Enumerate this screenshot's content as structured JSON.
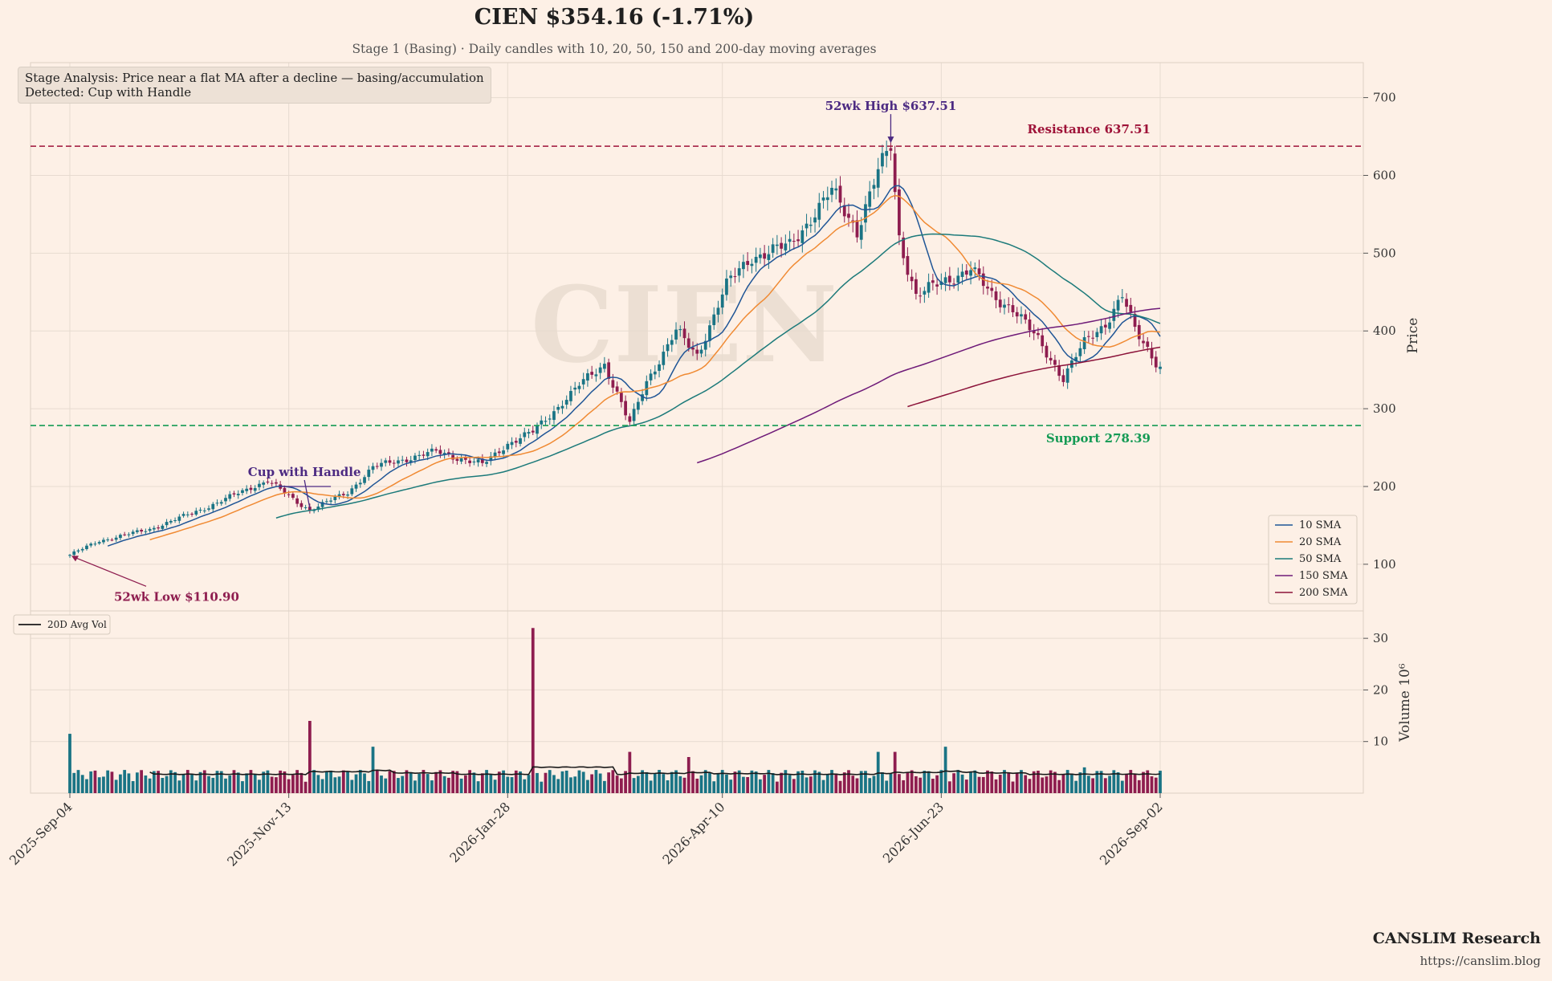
{
  "header": {
    "title": "CIEN  $354.16  (-1.71%)",
    "subtitle": "Stage 1 (Basing)  ·  Daily candles with 10, 20, 50, 150 and 200-day moving averages"
  },
  "analysis_box": {
    "line1": "Stage Analysis: Price near a flat MA after a decline — basing/accumulation",
    "line2": "Detected: Cup with Handle"
  },
  "branding": {
    "name": "CANSLIM Research",
    "url": "https://canslim.blog"
  },
  "colors": {
    "background": "#fdf0e6",
    "up": "#1a7485",
    "down": "#8e1d4f",
    "sma10": "#1f5596",
    "sma20": "#f08a33",
    "sma50": "#1c7a7a",
    "sma150": "#6e1a78",
    "sma200": "#8b1239",
    "resistance": "#9e1238",
    "support": "#149a54",
    "pattern": "#4c2a82",
    "avgvol": "#1a1a1a"
  },
  "chart_data": {
    "type": "candlestick",
    "ticker": "CIEN",
    "x_start": "2025-09-04",
    "x_end": "2026-09-02",
    "x_ticks": [
      "2025-Sep-04",
      "2025-Nov-13",
      "2026-Jan-28",
      "2026-Apr-10",
      "2026-Jun-23",
      "2026-Sep-02"
    ],
    "price_axis": {
      "label": "Price",
      "ticks": [
        100,
        200,
        300,
        400,
        500,
        600,
        700
      ],
      "ylim": [
        40,
        745
      ]
    },
    "volume_axis": {
      "label": "Volume 10⁶",
      "ticks": [
        10,
        20,
        30
      ],
      "ylim": [
        0,
        35
      ]
    },
    "close_anchors": [
      [
        "2025-09-04",
        112
      ],
      [
        "2025-09-15",
        130
      ],
      [
        "2025-10-01",
        145
      ],
      [
        "2025-10-20",
        172
      ],
      [
        "2025-11-10",
        208
      ],
      [
        "2025-11-18",
        183
      ],
      [
        "2025-11-24",
        170
      ],
      [
        "2025-12-05",
        192
      ],
      [
        "2025-12-15",
        225
      ],
      [
        "2026-01-05",
        245
      ],
      [
        "2026-01-20",
        228
      ],
      [
        "2026-01-28",
        255
      ],
      [
        "2026-02-05",
        270
      ],
      [
        "2026-02-20",
        330
      ],
      [
        "2026-03-01",
        358
      ],
      [
        "2026-03-10",
        280
      ],
      [
        "2026-03-15",
        335
      ],
      [
        "2026-03-25",
        400
      ],
      [
        "2026-04-01",
        368
      ],
      [
        "2026-04-10",
        460
      ],
      [
        "2026-04-20",
        495
      ],
      [
        "2026-05-01",
        510
      ],
      [
        "2026-05-15",
        580
      ],
      [
        "2026-05-25",
        530
      ],
      [
        "2026-06-01",
        605
      ],
      [
        "2026-06-04",
        637
      ],
      [
        "2026-06-08",
        520
      ],
      [
        "2026-06-13",
        445
      ],
      [
        "2026-06-23",
        465
      ],
      [
        "2026-07-01",
        480
      ],
      [
        "2026-07-08",
        445
      ],
      [
        "2026-07-15",
        430
      ],
      [
        "2026-07-25",
        380
      ],
      [
        "2026-08-01",
        340
      ],
      [
        "2026-08-08",
        385
      ],
      [
        "2026-08-15",
        410
      ],
      [
        "2026-08-20",
        445
      ],
      [
        "2026-08-25",
        400
      ],
      [
        "2026-09-02",
        354
      ]
    ],
    "sma_series": [
      {
        "name": "10 SMA",
        "window": 10
      },
      {
        "name": "20 SMA",
        "window": 20
      },
      {
        "name": "50 SMA",
        "window": 50
      },
      {
        "name": "150 SMA",
        "window": 150
      },
      {
        "name": "200 SMA",
        "window": 200
      }
    ],
    "avg_volume_label": "20D Avg Vol",
    "resistance": {
      "value": 637.51,
      "label": "Resistance 637.51"
    },
    "support": {
      "value": 278.39,
      "label": "Support 278.39"
    },
    "annotations": [
      {
        "text": "52wk High $637.51",
        "date": "2026-06-04",
        "value": 637.51
      },
      {
        "text": "52wk Low $110.90",
        "date": "2025-09-04",
        "value": 110.9
      },
      {
        "text": "Cup with Handle",
        "date": "2025-11-13",
        "value": 200
      }
    ],
    "watermark": "CIEN",
    "volume_spikes": [
      [
        "2025-09-04",
        11.5
      ],
      [
        "2025-11-24",
        14.0
      ],
      [
        "2025-12-15",
        9.0
      ],
      [
        "2026-02-05",
        32.0
      ],
      [
        "2026-03-10",
        8.0
      ],
      [
        "2026-03-30",
        7.0
      ],
      [
        "2026-06-01",
        8.0
      ],
      [
        "2026-06-05",
        8.0
      ],
      [
        "2026-06-23",
        9.0
      ],
      [
        "2026-08-08",
        5.0
      ]
    ]
  }
}
